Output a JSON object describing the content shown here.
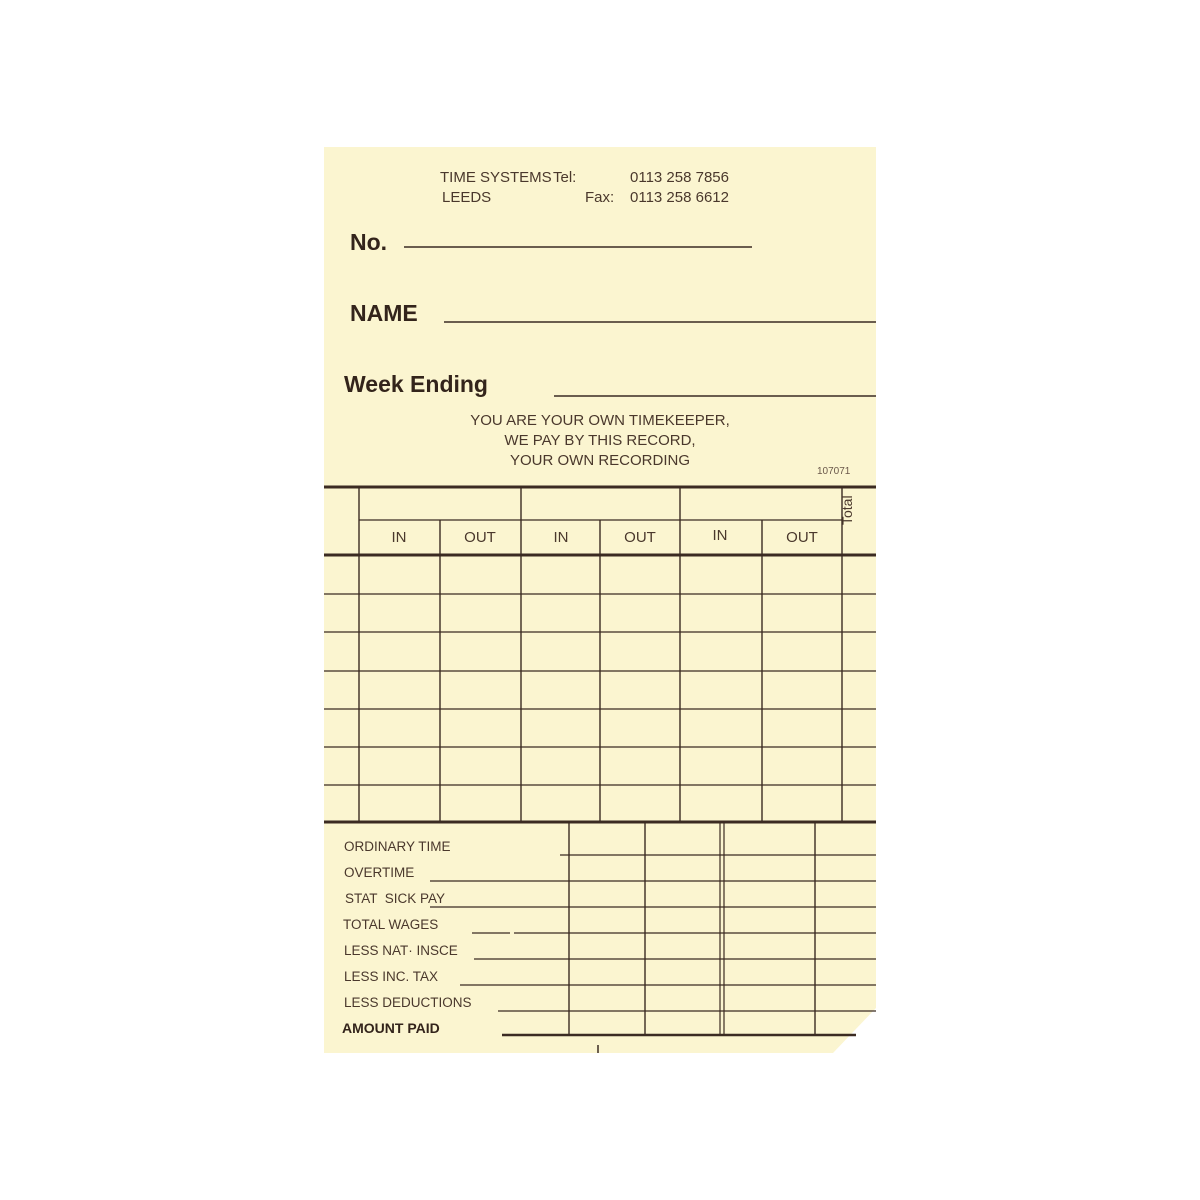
{
  "header": {
    "company": "TIME SYSTEMS",
    "city": "LEEDS",
    "tel_label": "Tel:",
    "tel": "0113 258 7856",
    "fax_label": "Fax:",
    "fax": "0113 258 6612"
  },
  "fields": {
    "number_label": "No.",
    "name_label": "NAME",
    "week_ending_label": "Week Ending"
  },
  "motto": [
    "YOU ARE YOUR OWN TIMEKEEPER,",
    "WE PAY BY THIS RECORD,",
    "YOUR OWN RECORDING"
  ],
  "form_code": "107071",
  "time_grid": {
    "columns": [
      "IN",
      "OUT",
      "IN",
      "OUT",
      "IN",
      "OUT"
    ],
    "total_label": "Total"
  },
  "pay_rows": [
    "ORDINARY TIME",
    "OVERTIME",
    "STAT  SICK PAY",
    "TOTAL WAGES",
    "LESS NAT· INSCE",
    "LESS INC. TAX",
    "LESS DEDUCTIONS"
  ],
  "amount_paid_label": "AMOUNT PAID",
  "colors": {
    "paper": "#fbf5d0",
    "ink": "#3b2b22"
  }
}
